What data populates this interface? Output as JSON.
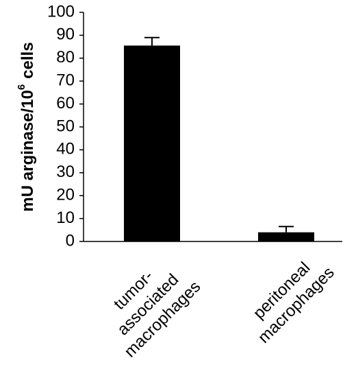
{
  "chart_data": {
    "type": "bar",
    "y_label": {
      "text": "mU arginase/10",
      "superscript": "6",
      "suffix": "cells"
    },
    "categories": [
      [
        "tumor-",
        "associated",
        "macrophages"
      ],
      [
        "peritoneal",
        "macrophages"
      ]
    ],
    "values": [
      85.5,
      4
    ],
    "errors": [
      3.5,
      2.5
    ],
    "color": "#000000",
    "ylim": [
      0,
      100
    ],
    "yticks": [
      0,
      10,
      20,
      30,
      40,
      50,
      60,
      70,
      80,
      90,
      100
    ]
  }
}
